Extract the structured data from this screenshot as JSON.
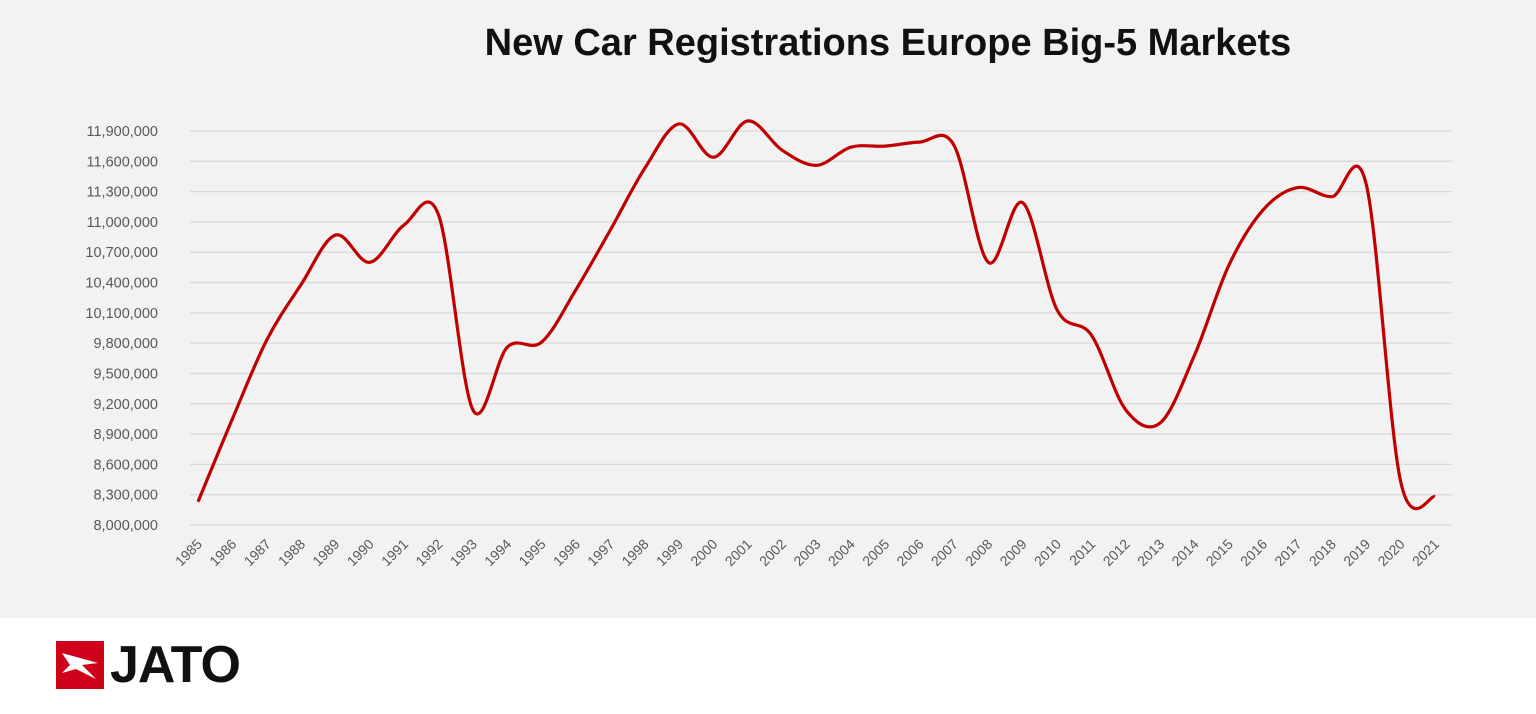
{
  "chart_data": {
    "type": "line",
    "title": "New Car Registrations Europe Big-5 Markets",
    "xlabel": "",
    "ylabel": "",
    "ylim": [
      8000000,
      11900000
    ],
    "yticks": [
      "8,000,000",
      "8,300,000",
      "8,600,000",
      "8,900,000",
      "9,200,000",
      "9,500,000",
      "9,800,000",
      "10,100,000",
      "10,400,000",
      "10,700,000",
      "11,000,000",
      "11,300,000",
      "11,600,000",
      "11,900,000"
    ],
    "ytick_values": [
      8000000,
      8300000,
      8600000,
      8900000,
      9200000,
      9500000,
      9800000,
      10100000,
      10400000,
      10700000,
      11000000,
      11300000,
      11600000,
      11900000
    ],
    "grid": true,
    "smooth": true,
    "color": "#c00000",
    "categories": [
      "1985",
      "1986",
      "1987",
      "1988",
      "1989",
      "1990",
      "1991",
      "1992",
      "1993",
      "1994",
      "1995",
      "1996",
      "1997",
      "1998",
      "1999",
      "2000",
      "2001",
      "2002",
      "2003",
      "2004",
      "2005",
      "2006",
      "2007",
      "2008",
      "2009",
      "2010",
      "2011",
      "2012",
      "2013",
      "2014",
      "2015",
      "2016",
      "2017",
      "2018",
      "2019",
      "2020",
      "2021"
    ],
    "values": [
      8230000,
      9050000,
      9830000,
      10380000,
      10870000,
      10600000,
      10970000,
      11070000,
      9140000,
      9760000,
      9810000,
      10330000,
      10920000,
      11530000,
      11970000,
      11640000,
      12000000,
      11710000,
      11560000,
      11740000,
      11750000,
      11790000,
      11760000,
      10600000,
      11190000,
      10130000,
      9880000,
      9140000,
      9010000,
      9680000,
      10570000,
      11120000,
      11340000,
      11250000,
      11370000,
      8430000,
      8280000
    ]
  },
  "logo": {
    "text": "JATO",
    "brand_color": "#d0021b"
  }
}
